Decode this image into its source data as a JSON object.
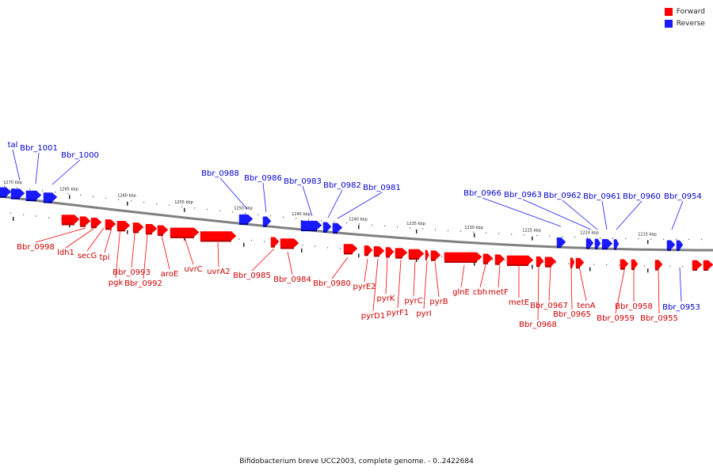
{
  "title": "Bifidobacterium breve UCC2003, complete genome. - 0..2422684",
  "legend": {
    "items": [
      {
        "label": "Forward",
        "color": "#ff0000"
      },
      {
        "label": "Reverse",
        "color": "#1a1aff"
      }
    ]
  },
  "colors": {
    "forward": "#ff0000",
    "reverse": "#1a1aff",
    "backbone": "#808080"
  },
  "ticks": [
    "1270 kbp",
    "1265 kbp",
    "1260 kbp",
    "1255 kbp",
    "1250 kbp",
    "1245 kbp",
    "1240 kbp",
    "1235 kbp",
    "1230 kbp",
    "1225 kbp",
    "1220 kbp",
    "1215 kbp"
  ],
  "genes": {
    "forward_labels": [
      "Bbr_0998",
      "ldh1",
      "secG",
      "tpi",
      "pgk",
      "Bbr_0993",
      "Bbr_0992",
      "aroE",
      "uvrC",
      "uvrA2",
      "Bbr_0985",
      "Bbr_0984",
      "Bbr_0980",
      "pyrE2",
      "pyrD1",
      "pyrK",
      "pyrF1",
      "pyrC",
      "pyrI",
      "pyrB",
      "glnE",
      "cbh",
      "metF",
      "metE",
      "Bbr_0968",
      "Bbr_0967",
      "Bbr_0965",
      "tenA",
      "Bbr_0959",
      "Bbr_0958",
      "Bbr_0955"
    ],
    "reverse_labels": [
      "tal",
      "Bbr_1001",
      "Bbr_1000",
      "Bbr_0988",
      "Bbr_0986",
      "Bbr_0983",
      "Bbr_0982",
      "Bbr_0981",
      "Bbr_0966",
      "Bbr_0963",
      "Bbr_0962",
      "Bbr_0961",
      "Bbr_0960",
      "Bbr_0954",
      "Bbr_0953"
    ]
  }
}
